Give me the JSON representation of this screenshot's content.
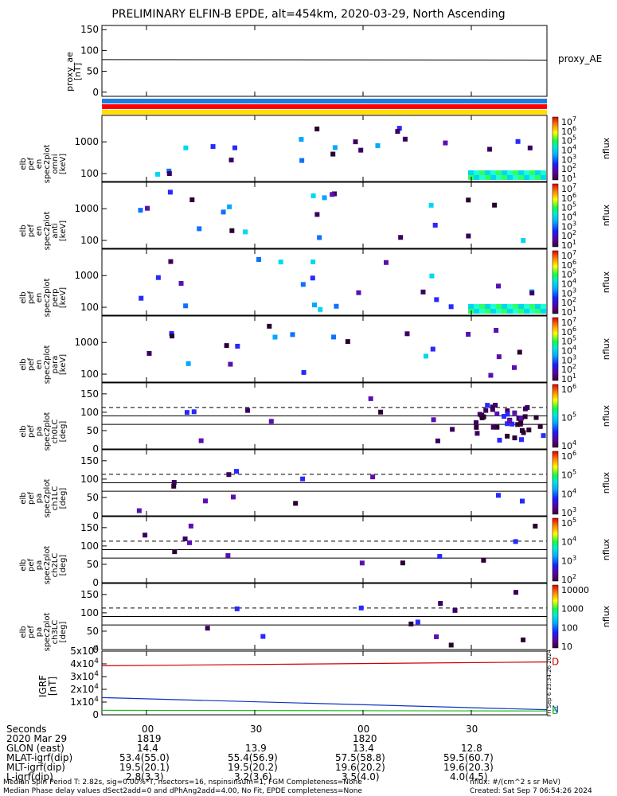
{
  "title": "PRELIMINARY ELFIN-B EPDE, alt=454km, 2020-03-29, North Ascending",
  "chart_data": [
    {
      "type": "line",
      "name": "proxy_ae",
      "ylabel": [
        "proxy_ae",
        "[nT]"
      ],
      "right_label": "proxy_AE",
      "ylim": [
        -10,
        160
      ],
      "yticks": [
        "150",
        "100",
        "50",
        "0"
      ],
      "series": [
        {
          "name": "proxy_AE",
          "x": [
            0,
            1
          ],
          "values": [
            78,
            77
          ]
        }
      ]
    },
    {
      "type": "bars",
      "name": "region-bars",
      "colors": [
        "#1e7be0",
        "#ff0000",
        "#ffe000"
      ]
    },
    {
      "type": "heatmap",
      "name": "omni-spectrogram",
      "ylabel": [
        "elb",
        "pef",
        "en",
        "spec2plot",
        "omni",
        "[keV]"
      ],
      "yscale": "log",
      "yticks": [
        "1000",
        "100"
      ],
      "colorbar_ticks": [
        "10^7",
        "10^6",
        "10^5",
        "10^4",
        "10^3",
        "10^2",
        "10^1"
      ],
      "colorbar_label": "nflux"
    },
    {
      "type": "heatmap",
      "name": "anti-spectrogram",
      "ylabel": [
        "elb",
        "pef",
        "en",
        "spec2plot",
        "anti",
        "[keV]"
      ],
      "yscale": "log",
      "yticks": [
        "1000",
        "100"
      ],
      "colorbar_ticks": [
        "10^7",
        "10^6",
        "10^5",
        "10^4",
        "10^3",
        "10^2",
        "10^1"
      ],
      "colorbar_label": "nflux"
    },
    {
      "type": "heatmap",
      "name": "perp-spectrogram",
      "ylabel": [
        "elb",
        "pef",
        "en",
        "spec2plot",
        "perp",
        "[keV]"
      ],
      "yscale": "log",
      "yticks": [
        "1000",
        "100"
      ],
      "colorbar_ticks": [
        "10^7",
        "10^6",
        "10^5",
        "10^4",
        "10^3",
        "10^2",
        "10^1"
      ],
      "colorbar_label": "nflux"
    },
    {
      "type": "heatmap",
      "name": "para-spectrogram",
      "ylabel": [
        "elb",
        "pef",
        "en",
        "spec2plot",
        "para",
        "[keV]"
      ],
      "yscale": "log",
      "yticks": [
        "1000",
        "100"
      ],
      "colorbar_ticks": [
        "10^7",
        "10^6",
        "10^5",
        "10^4",
        "10^3",
        "10^2",
        "10^1"
      ],
      "colorbar_label": "nflux"
    },
    {
      "type": "heatmap",
      "name": "ch0LC-pitch-angle",
      "ylabel": [
        "elb",
        "pef",
        "pa",
        "spec2plot",
        "ch0LC",
        "[deg]"
      ],
      "ylim": [
        0,
        180
      ],
      "yticks": [
        "150",
        "100",
        "50",
        "0"
      ],
      "loss_cone_deg": 67,
      "anti_loss_cone_deg": 113,
      "colorbar_ticks": [
        "10^6",
        "10^5",
        "10^4"
      ],
      "colorbar_label": "nflux"
    },
    {
      "type": "heatmap",
      "name": "ch1LC-pitch-angle",
      "ylabel": [
        "elb",
        "pef",
        "pa",
        "spec2plot",
        "ch1LC",
        "[deg]"
      ],
      "ylim": [
        0,
        180
      ],
      "yticks": [
        "150",
        "100",
        "50",
        "0"
      ],
      "loss_cone_deg": 67,
      "anti_loss_cone_deg": 113,
      "colorbar_ticks": [
        "10^6",
        "10^5",
        "10^4",
        "10^3"
      ],
      "colorbar_label": "nflux"
    },
    {
      "type": "heatmap",
      "name": "ch2LC-pitch-angle",
      "ylabel": [
        "elb",
        "pef",
        "pa",
        "spec2plot",
        "ch2LC",
        "[deg]"
      ],
      "ylim": [
        0,
        180
      ],
      "yticks": [
        "150",
        "100",
        "50",
        "0"
      ],
      "loss_cone_deg": 67,
      "anti_loss_cone_deg": 113,
      "colorbar_ticks": [
        "10^5",
        "10^4",
        "10^3",
        "10^2"
      ],
      "colorbar_label": "nflux"
    },
    {
      "type": "heatmap",
      "name": "ch3LC-pitch-angle",
      "ylabel": [
        "elb",
        "pef",
        "pa",
        "spec2plot",
        "ch3LC",
        "[deg]"
      ],
      "ylim": [
        0,
        180
      ],
      "yticks": [
        "150",
        "100",
        "50",
        "0"
      ],
      "loss_cone_deg": 67,
      "anti_loss_cone_deg": 113,
      "colorbar_ticks": [
        "10000",
        "1000",
        "100",
        "10"
      ],
      "colorbar_label": "nflux"
    },
    {
      "type": "line",
      "name": "igrf",
      "ylabel": [
        "IGRF",
        "[nT]"
      ],
      "ylim": [
        0,
        50000
      ],
      "yticks": [
        "5x10^4",
        "4x10^4",
        "3x10^4",
        "2x10^4",
        "1x10^4",
        "0"
      ],
      "series": [
        {
          "name": "D",
          "color": "#cc0000",
          "values": [
            38500,
            41500
          ]
        },
        {
          "name": "N",
          "color": "#1030c0",
          "values": [
            13500,
            4000
          ]
        },
        {
          "name": "E",
          "color": "#20c020",
          "values": [
            3500,
            3000
          ]
        }
      ],
      "side_text": "Fri Sep  6 23:34:26 2024"
    }
  ],
  "footer": {
    "rows": [
      {
        "label": "Seconds",
        "values": [
          "00",
          "30",
          "00",
          "30"
        ]
      },
      {
        "label": "2020 Mar 29",
        "values": [
          "1819",
          "",
          "1820",
          ""
        ]
      },
      {
        "label": "GLON (east)",
        "values": [
          "14.4",
          "13.9",
          "13.4",
          "12.8"
        ]
      },
      {
        "label": "MLAT-igrf(dip)",
        "values": [
          "53.4(55.0)",
          "55.4(56.9)",
          "57.5(58.8)",
          "59.5(60.7)"
        ]
      },
      {
        "label": "MLT-igrf(dip)",
        "values": [
          "19.5(20.1)",
          "19.5(20.2)",
          "19.6(20.2)",
          "19.6(20.3)"
        ]
      },
      {
        "label": "L-igrf(dip)",
        "values": [
          "2.8(3.3)",
          "3.2(3.6)",
          "3.5(4.0)",
          "4.0(4.5)"
        ]
      }
    ],
    "note1": "Median Spin Period T: 2.82s, sig=0.00%*T, nsectors=16, nspinsinsum=1, FGM Completeness=None",
    "note2": "Median Phase delay values dSect2add=0 and dPhAng2add=4.00, No Fit, EPDE completeness=None",
    "units": "nflux: #/(cm^2 s sr MeV)",
    "created": "Created: Sat Sep  7 06:54:26 2024"
  }
}
